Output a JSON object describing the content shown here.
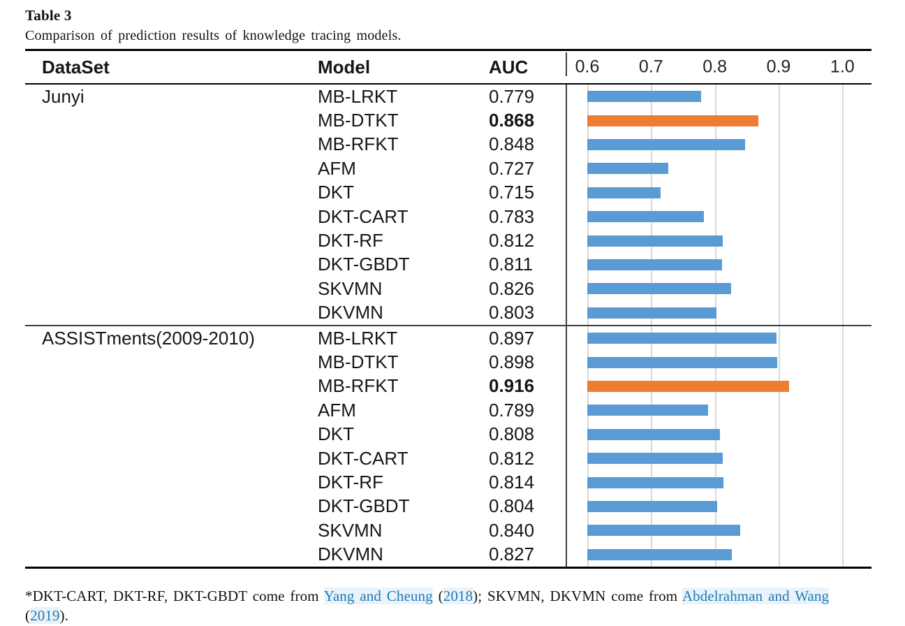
{
  "title": "Table 3",
  "caption": "Comparison of prediction results of knowledge tracing models.",
  "columns": {
    "dataset": "DataSet",
    "model": "Model",
    "auc": "AUC"
  },
  "axis": {
    "min": 0.6,
    "max": 1.0,
    "ticks": [
      "0.6",
      "0.7",
      "0.8",
      "0.9",
      "1.0"
    ]
  },
  "colors": {
    "bar_blue": "#5B9BD5",
    "bar_orange": "#ED7D31",
    "gridline": "#D9D9D9",
    "link": "#1C7BB5",
    "link_bg": "#EAF2FA"
  },
  "sections": [
    {
      "dataset": "Junyi",
      "rows": [
        {
          "model": "MB-LRKT",
          "auc": "0.779",
          "bold": false,
          "highlight": false
        },
        {
          "model": "MB-DTKT",
          "auc": "0.868",
          "bold": true,
          "highlight": true
        },
        {
          "model": "MB-RFKT",
          "auc": "0.848",
          "bold": false,
          "highlight": false
        },
        {
          "model": "AFM",
          "auc": "0.727",
          "bold": false,
          "highlight": false
        },
        {
          "model": "DKT",
          "auc": "0.715",
          "bold": false,
          "highlight": false
        },
        {
          "model": "DKT-CART",
          "auc": "0.783",
          "bold": false,
          "highlight": false
        },
        {
          "model": "DKT-RF",
          "auc": "0.812",
          "bold": false,
          "highlight": false
        },
        {
          "model": "DKT-GBDT",
          "auc": "0.811",
          "bold": false,
          "highlight": false
        },
        {
          "model": "SKVMN",
          "auc": "0.826",
          "bold": false,
          "highlight": false
        },
        {
          "model": "DKVMN",
          "auc": "0.803",
          "bold": false,
          "highlight": false
        }
      ]
    },
    {
      "dataset": "ASSISTments(2009-2010)",
      "rows": [
        {
          "model": "MB-LRKT",
          "auc": "0.897",
          "bold": false,
          "highlight": false
        },
        {
          "model": "MB-DTKT",
          "auc": "0.898",
          "bold": false,
          "highlight": false
        },
        {
          "model": "MB-RFKT",
          "auc": "0.916",
          "bold": true,
          "highlight": true
        },
        {
          "model": "AFM",
          "auc": "0.789",
          "bold": false,
          "highlight": false
        },
        {
          "model": "DKT",
          "auc": "0.808",
          "bold": false,
          "highlight": false
        },
        {
          "model": "DKT-CART",
          "auc": "0.812",
          "bold": false,
          "highlight": false
        },
        {
          "model": "DKT-RF",
          "auc": "0.814",
          "bold": false,
          "highlight": false
        },
        {
          "model": "DKT-GBDT",
          "auc": "0.804",
          "bold": false,
          "highlight": false
        },
        {
          "model": "SKVMN",
          "auc": "0.840",
          "bold": false,
          "highlight": false
        },
        {
          "model": "DKVMN",
          "auc": "0.827",
          "bold": false,
          "highlight": false
        }
      ]
    }
  ],
  "chart_data": {
    "type": "bar",
    "orientation": "horizontal",
    "xlabel": "AUC",
    "xlim": [
      0.6,
      1.0
    ],
    "xticks": [
      0.6,
      0.7,
      0.8,
      0.9,
      1.0
    ],
    "grid": true,
    "categories": [
      "MB-LRKT",
      "MB-DTKT",
      "MB-RFKT",
      "AFM",
      "DKT",
      "DKT-CART",
      "DKT-RF",
      "DKT-GBDT",
      "SKVMN",
      "DKVMN"
    ],
    "series": [
      {
        "name": "Junyi",
        "values": [
          0.779,
          0.868,
          0.848,
          0.727,
          0.715,
          0.783,
          0.812,
          0.811,
          0.826,
          0.803
        ],
        "highlighted_category": "MB-DTKT"
      },
      {
        "name": "ASSISTments(2009-2010)",
        "values": [
          0.897,
          0.898,
          0.916,
          0.789,
          0.808,
          0.812,
          0.814,
          0.804,
          0.84,
          0.827
        ],
        "highlighted_category": "MB-RFKT"
      }
    ]
  },
  "footnote": {
    "parts": [
      {
        "text": "*DKT-CART, DKT-RF, DKT-GBDT come from ",
        "link": false
      },
      {
        "text": "Yang and Cheung",
        "link": true
      },
      {
        "text": " (",
        "link": false
      },
      {
        "text": "2018",
        "link": true
      },
      {
        "text": "); SKVMN, DKVMN come from ",
        "link": false
      },
      {
        "text": "Abdelrahman and Wang",
        "link": true
      },
      {
        "br": true
      },
      {
        "text": "(",
        "link": false
      },
      {
        "text": "2019",
        "link": true
      },
      {
        "text": ").",
        "link": false
      }
    ]
  }
}
